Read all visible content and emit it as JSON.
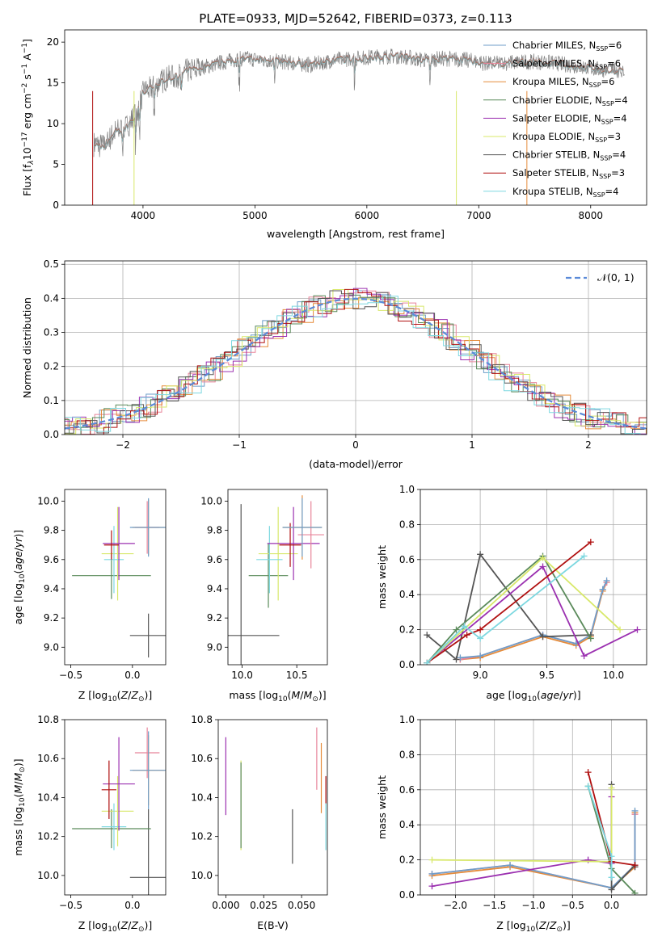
{
  "figure_title": "PLATE=0933, MJD=52642, FIBERID=0373, z=0.113",
  "colors": {
    "chabrier_miles": "#6f9ec9",
    "salpeter_miles": "#e8849a",
    "kroupa_miles": "#e58b3a",
    "chabrier_elodie": "#5a8a5a",
    "salpeter_elodie": "#9b30b0",
    "kroupa_elodie": "#d8e86a",
    "chabrier_stelib": "#555555",
    "salpeter_stelib": "#b01010",
    "kroupa_stelib": "#7dd8e0",
    "normal_dashed": "#5a8ad8",
    "data": "#808080"
  },
  "chart_data": [
    {
      "id": "spectrum",
      "type": "line",
      "xlabel": "wavelength [Angstrom, rest frame]",
      "ylabel": "Flux [f",
      "xlim": [
        3300,
        8500
      ],
      "ylim": [
        0,
        21.5
      ],
      "xticks": [
        4000,
        5000,
        6000,
        7000,
        8000
      ],
      "yticks": [
        0,
        5,
        10,
        15,
        20
      ],
      "legend_position": "lower-right",
      "series": [
        {
          "name": "Chabrier MILES, N",
          "sub": "SSP",
          "val": "=6",
          "color": "#6f9ec9"
        },
        {
          "name": "Salpeter MILES, N",
          "sub": "SSP",
          "val": "=6",
          "color": "#e8849a"
        },
        {
          "name": "Kroupa MILES, N",
          "sub": "SSP",
          "val": "=6",
          "color": "#e58b3a"
        },
        {
          "name": "Chabrier ELODIE, N",
          "sub": "SSP",
          "val": "=4",
          "color": "#5a8a5a"
        },
        {
          "name": "Salpeter ELODIE, N",
          "sub": "SSP",
          "val": "=4",
          "color": "#9b30b0"
        },
        {
          "name": "Kroupa ELODIE, N",
          "sub": "SSP",
          "val": "=3",
          "color": "#d8e86a"
        },
        {
          "name": "Chabrier STELIB, N",
          "sub": "SSP",
          "val": "=4",
          "color": "#555555"
        },
        {
          "name": "Salpeter STELIB, N",
          "sub": "SSP",
          "val": "=3",
          "color": "#b01010"
        },
        {
          "name": "Kroupa STELIB, N",
          "sub": "SSP",
          "val": "=4",
          "color": "#7dd8e0"
        }
      ],
      "continuum_x": [
        3560,
        3650,
        3750,
        3850,
        3950,
        4000,
        4100,
        4200,
        4300,
        4400,
        4500,
        4700,
        4900,
        5100,
        5300,
        5500,
        5700,
        5900,
        6100,
        6300,
        6500,
        6700,
        6900,
        7100,
        7300,
        7500,
        7700,
        7900,
        8100,
        8300
      ],
      "continuum_y": [
        7.5,
        7.2,
        9.0,
        9.5,
        11.5,
        13.8,
        14.5,
        15.5,
        15.8,
        16.5,
        16.8,
        17.5,
        18.0,
        17.8,
        17.5,
        17.2,
        17.8,
        18.0,
        18.2,
        18.3,
        17.8,
        18.0,
        17.8,
        17.3,
        17.5,
        17.6,
        17.4,
        17.0,
        16.6,
        16.5
      ]
    },
    {
      "id": "residuals",
      "type": "histogram",
      "xlabel": "(data-model)/error",
      "ylabel": "Normed distribution",
      "xlim": [
        -2.5,
        2.5
      ],
      "ylim": [
        0,
        0.51
      ],
      "xticks": [
        -2,
        -1,
        0,
        1,
        2
      ],
      "yticks": [
        0.0,
        0.1,
        0.2,
        0.3,
        0.4,
        0.5
      ],
      "grid": true,
      "legend": "N(0,1)"
    },
    {
      "id": "age_vs_Z",
      "type": "errorbar",
      "xlabel": "Z [log",
      "ylabel": "age  [log",
      "xlim": [
        -0.55,
        0.27
      ],
      "ylim": [
        8.88,
        10.08
      ],
      "xticks": [
        -0.5,
        0.0
      ],
      "yticks": [
        9.0,
        9.2,
        9.4,
        9.6,
        9.8,
        10.0
      ],
      "points": [
        {
          "x": 0.13,
          "xerr": 0.15,
          "y": 9.08,
          "yerr": 0.15,
          "color": "#555555"
        },
        {
          "x": -0.17,
          "xerr": 0.32,
          "y": 9.49,
          "yerr": 0.16,
          "color": "#5a8a5a"
        },
        {
          "x": -0.12,
          "xerr": 0.13,
          "y": 9.64,
          "yerr": 0.32,
          "color": "#d8e86a"
        },
        {
          "x": -0.15,
          "xerr": 0.08,
          "y": 9.6,
          "yerr": 0.23,
          "color": "#7dd8e0"
        },
        {
          "x": -0.11,
          "xerr": 0.13,
          "y": 9.71,
          "yerr": 0.25,
          "color": "#9b30b0"
        },
        {
          "x": -0.17,
          "xerr": 0.06,
          "y": 9.7,
          "yerr": 0.1,
          "color": "#b01010"
        },
        {
          "x": 0.12,
          "xerr": 0.1,
          "y": 9.82,
          "yerr": 0.18,
          "color": "#e8849a"
        },
        {
          "x": 0.13,
          "xerr": 0.13,
          "y": 9.82,
          "yerr": 0.19,
          "color": "#e58b3a"
        },
        {
          "x": 0.13,
          "xerr": 0.15,
          "y": 9.82,
          "yerr": 0.2,
          "color": "#6f9ec9"
        }
      ]
    },
    {
      "id": "age_vs_mass",
      "type": "errorbar",
      "xlabel": "mass [log",
      "xlim": [
        9.87,
        10.78
      ],
      "ylim": [
        8.88,
        10.08
      ],
      "xticks": [
        10.0,
        10.5
      ],
      "yticks": [
        9.0,
        9.2,
        9.4,
        9.6,
        9.8,
        10.0
      ],
      "points": [
        {
          "x": 9.99,
          "xerr": 0.35,
          "y": 9.08,
          "yerr": 0.9,
          "color": "#555555"
        },
        {
          "x": 10.24,
          "xerr": 0.18,
          "y": 9.49,
          "yerr": 0.22,
          "color": "#5a8a5a"
        },
        {
          "x": 10.33,
          "xerr": 0.18,
          "y": 9.64,
          "yerr": 0.32,
          "color": "#d8e86a"
        },
        {
          "x": 10.25,
          "xerr": 0.12,
          "y": 9.6,
          "yerr": 0.23,
          "color": "#7dd8e0"
        },
        {
          "x": 10.47,
          "xerr": 0.24,
          "y": 9.71,
          "yerr": 0.25,
          "color": "#9b30b0"
        },
        {
          "x": 10.44,
          "xerr": 0.1,
          "y": 9.7,
          "yerr": 0.15,
          "color": "#b01010"
        },
        {
          "x": 10.63,
          "xerr": 0.12,
          "y": 9.77,
          "yerr": 0.23,
          "color": "#e8849a"
        },
        {
          "x": 10.55,
          "xerr": 0.18,
          "y": 9.82,
          "yerr": 0.22,
          "color": "#e58b3a"
        },
        {
          "x": 10.55,
          "xerr": 0.18,
          "y": 9.82,
          "yerr": 0.2,
          "color": "#6f9ec9"
        }
      ]
    },
    {
      "id": "mass_weight_vs_age",
      "type": "line",
      "xlabel": "age  [log",
      "ylabel": "mass weight",
      "xlim": [
        8.55,
        10.25
      ],
      "ylim": [
        0,
        1.0
      ],
      "xticks": [
        9.0,
        9.5,
        10.0
      ],
      "yticks": [
        0.0,
        0.2,
        0.4,
        0.6,
        0.8,
        1.0
      ],
      "grid": true,
      "series": [
        {
          "color": "#e58b3a",
          "x": [
            8.85,
            9.0,
            9.47,
            9.72,
            9.83,
            9.92,
            9.95
          ],
          "y": [
            0.03,
            0.04,
            0.16,
            0.11,
            0.16,
            0.42,
            0.47
          ]
        },
        {
          "color": "#e8849a",
          "x": [
            8.85,
            9.0,
            9.47,
            9.72,
            9.83,
            9.92,
            9.95
          ],
          "y": [
            0.03,
            0.05,
            0.17,
            0.12,
            0.17,
            0.43,
            0.47
          ]
        },
        {
          "color": "#6f9ec9",
          "x": [
            8.85,
            9.0,
            9.47,
            9.72,
            9.83,
            9.92,
            9.95
          ],
          "y": [
            0.04,
            0.05,
            0.17,
            0.12,
            0.17,
            0.43,
            0.48
          ]
        },
        {
          "color": "#555555",
          "x": [
            8.6,
            8.82,
            9.0,
            9.47,
            9.83
          ],
          "y": [
            0.17,
            0.03,
            0.63,
            0.16,
            0.17
          ]
        },
        {
          "color": "#5a8a5a",
          "x": [
            8.6,
            8.82,
            9.47,
            9.83
          ],
          "y": [
            0.01,
            0.2,
            0.62,
            0.15
          ]
        },
        {
          "color": "#9b30b0",
          "x": [
            8.6,
            9.47,
            9.78,
            10.18
          ],
          "y": [
            0.01,
            0.56,
            0.05,
            0.2
          ]
        },
        {
          "color": "#d8e86a",
          "x": [
            8.6,
            9.47,
            10.05
          ],
          "y": [
            0.01,
            0.61,
            0.2
          ]
        },
        {
          "color": "#b01010",
          "x": [
            8.6,
            8.9,
            9.0,
            9.83
          ],
          "y": [
            0.01,
            0.17,
            0.2,
            0.7
          ]
        },
        {
          "color": "#7dd8e0",
          "x": [
            8.6,
            8.88,
            9.0,
            9.78
          ],
          "y": [
            0.01,
            0.22,
            0.15,
            0.62
          ]
        }
      ]
    },
    {
      "id": "mass_vs_Z",
      "type": "errorbar",
      "xlabel": "Z [log",
      "ylabel": "mass [log",
      "xlim": [
        -0.55,
        0.27
      ],
      "ylim": [
        9.9,
        10.8
      ],
      "xticks": [
        -0.5,
        0.0
      ],
      "yticks": [
        10.0,
        10.2,
        10.4,
        10.6,
        10.8
      ],
      "points": [
        {
          "x": 0.13,
          "xerr": 0.15,
          "y": 9.99,
          "yerr": 0.35,
          "color": "#555555"
        },
        {
          "x": -0.17,
          "xerr": 0.32,
          "y": 10.24,
          "yerr": 0.1,
          "color": "#5a8a5a"
        },
        {
          "x": -0.12,
          "xerr": 0.13,
          "y": 10.33,
          "yerr": 0.18,
          "color": "#d8e86a"
        },
        {
          "x": -0.15,
          "xerr": 0.1,
          "y": 10.25,
          "yerr": 0.12,
          "color": "#7dd8e0"
        },
        {
          "x": -0.11,
          "xerr": 0.13,
          "y": 10.47,
          "yerr": 0.24,
          "color": "#9b30b0"
        },
        {
          "x": -0.19,
          "xerr": 0.06,
          "y": 10.44,
          "yerr": 0.15,
          "color": "#b01010"
        },
        {
          "x": 0.12,
          "xerr": 0.1,
          "y": 10.63,
          "yerr": 0.13,
          "color": "#e8849a"
        },
        {
          "x": 0.13,
          "xerr": 0.13,
          "y": 10.54,
          "yerr": 0.18,
          "color": "#e58b3a"
        },
        {
          "x": 0.13,
          "xerr": 0.15,
          "y": 10.54,
          "yerr": 0.2,
          "color": "#6f9ec9"
        }
      ]
    },
    {
      "id": "mass_vs_ebv",
      "type": "errorbar",
      "xlabel": "E(B-V)",
      "xlim": [
        -0.005,
        0.067
      ],
      "ylim": [
        9.9,
        10.8
      ],
      "xticks": [
        0.0,
        0.025,
        0.05
      ],
      "xtick_labels": [
        "0.000",
        "0.025",
        "0.050"
      ],
      "yticks": [
        10.0,
        10.2,
        10.4,
        10.6,
        10.8
      ],
      "points": [
        {
          "x": 0.0,
          "y": 10.51,
          "yerr": 0.2,
          "color": "#9b30b0"
        },
        {
          "x": 0.01,
          "y": 10.36,
          "yerr": 0.23,
          "color": "#d8e86a"
        },
        {
          "x": 0.01,
          "y": 10.36,
          "yerr": 0.22,
          "color": "#5a8a5a"
        },
        {
          "x": 0.044,
          "y": 10.2,
          "yerr": 0.14,
          "color": "#555555"
        },
        {
          "x": 0.06,
          "y": 10.6,
          "yerr": 0.16,
          "color": "#e8849a"
        },
        {
          "x": 0.063,
          "y": 10.5,
          "yerr": 0.18,
          "color": "#e58b3a"
        },
        {
          "x": 0.066,
          "y": 10.44,
          "yerr": 0.07,
          "color": "#b01010"
        },
        {
          "x": 0.066,
          "y": 10.25,
          "yerr": 0.12,
          "color": "#7dd8e0"
        }
      ]
    },
    {
      "id": "mass_weight_vs_Z",
      "type": "line",
      "xlabel": "Z [log",
      "ylabel": "mass weight",
      "xlim": [
        -2.45,
        0.45
      ],
      "ylim": [
        0,
        1.0
      ],
      "xticks": [
        -2.0,
        -1.5,
        -1.0,
        -0.5,
        0.0
      ],
      "yticks": [
        0.0,
        0.2,
        0.4,
        0.6,
        0.8,
        1.0
      ],
      "grid": true,
      "series": [
        {
          "color": "#e58b3a",
          "x": [
            -2.3,
            -1.3,
            0.0,
            0.3,
            0.3
          ],
          "y": [
            0.11,
            0.16,
            0.04,
            0.16,
            0.47
          ]
        },
        {
          "color": "#e8849a",
          "x": [
            -2.3,
            -1.3,
            0.0,
            0.3,
            0.3
          ],
          "y": [
            0.12,
            0.17,
            0.04,
            0.17,
            0.46
          ]
        },
        {
          "color": "#6f9ec9",
          "x": [
            -2.3,
            -1.3,
            0.0,
            0.3,
            0.3
          ],
          "y": [
            0.12,
            0.17,
            0.04,
            0.17,
            0.48
          ]
        },
        {
          "color": "#555555",
          "x": [
            0.0,
            0.0,
            0.3,
            0.3
          ],
          "y": [
            0.63,
            0.03,
            0.17,
            0.16
          ]
        },
        {
          "color": "#5a8a5a",
          "x": [
            -0.3,
            0.0,
            0.3
          ],
          "y": [
            0.62,
            0.15,
            0.01
          ]
        },
        {
          "color": "#9b30b0",
          "x": [
            -2.3,
            -0.3,
            0.0,
            0.0
          ],
          "y": [
            0.05,
            0.2,
            0.18,
            0.56
          ]
        },
        {
          "color": "#d8e86a",
          "x": [
            -2.3,
            0.0,
            0.0
          ],
          "y": [
            0.2,
            0.19,
            0.61
          ]
        },
        {
          "color": "#b01010",
          "x": [
            -0.3,
            0.0,
            0.3
          ],
          "y": [
            0.7,
            0.19,
            0.17
          ]
        },
        {
          "color": "#7dd8e0",
          "x": [
            -0.3,
            0.0,
            0.0
          ],
          "y": [
            0.62,
            0.22,
            0.1
          ]
        }
      ]
    }
  ]
}
